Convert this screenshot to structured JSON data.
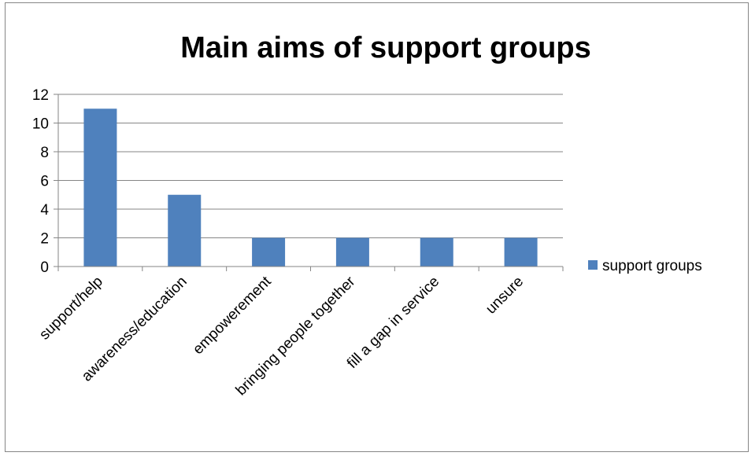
{
  "chart_data": {
    "type": "bar",
    "title": "Main aims of support groups",
    "xlabel": "",
    "ylabel": "",
    "categories": [
      "support/help",
      "awareness/education",
      "empowerement",
      "bringing people together",
      "fill a gap in service",
      "unsure"
    ],
    "series": [
      {
        "name": "support groups",
        "values": [
          11,
          5,
          2,
          2,
          2,
          2
        ],
        "color": "#4f81bd"
      }
    ],
    "ylim": [
      0,
      12
    ],
    "yticks": [
      0,
      2,
      4,
      6,
      8,
      10,
      12
    ],
    "grid": true,
    "legend_position": "right"
  }
}
